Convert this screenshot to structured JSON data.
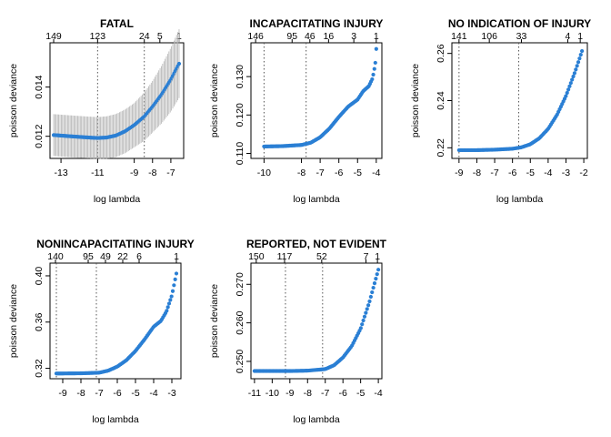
{
  "figure": {
    "background": "#ffffff",
    "point_color": "#2a7fd4",
    "band_color": "#b3b3b3"
  },
  "chart_data": [
    {
      "type": "scatter",
      "title": "FATAL",
      "xlabel": "log lambda",
      "ylabel": "poisson deviance",
      "xlim": [
        -13.6,
        -6.3
      ],
      "ylim": [
        0.0111,
        0.0158
      ],
      "xticks": [
        -13,
        -11,
        -9,
        -8,
        -7
      ],
      "yticks": [
        0.012,
        0.014
      ],
      "ytick_labels": [
        "0.012",
        "0.014"
      ],
      "top_ticks": [
        {
          "x": -13.4,
          "label": "149"
        },
        {
          "x": -11.0,
          "label": "123"
        },
        {
          "x": -8.45,
          "label": "24"
        },
        {
          "x": -7.6,
          "label": "5"
        },
        {
          "x": -6.55,
          "label": "1"
        }
      ],
      "vlines": [
        -11.0,
        -8.45
      ],
      "x_range": [
        -13.4,
        -6.55
      ],
      "curve": [
        [
          -13.4,
          0.01205
        ],
        [
          -12.5,
          0.012
        ],
        [
          -11.5,
          0.01195
        ],
        [
          -11.0,
          0.01193
        ],
        [
          -10.5,
          0.01195
        ],
        [
          -10.0,
          0.01203
        ],
        [
          -9.5,
          0.0122
        ],
        [
          -9.0,
          0.01245
        ],
        [
          -8.45,
          0.0128
        ],
        [
          -8.0,
          0.0132
        ],
        [
          -7.5,
          0.0137
        ],
        [
          -7.0,
          0.0143
        ],
        [
          -6.55,
          0.01495
        ]
      ],
      "band": [
        [
          -13.4,
          0.00085
        ],
        [
          -11.0,
          0.00085
        ],
        [
          -9.0,
          0.0009
        ],
        [
          -8.0,
          0.00105
        ],
        [
          -7.0,
          0.0013
        ],
        [
          -6.55,
          0.0014
        ]
      ],
      "extra_points": []
    },
    {
      "type": "scatter",
      "title": "INCAPACITATING INJURY",
      "xlabel": "log lambda",
      "ylabel": "poisson deviance",
      "xlim": [
        -10.7,
        -3.7
      ],
      "ylim": [
        0.1087,
        0.1388
      ],
      "xticks": [
        -10,
        -8,
        -7,
        -6,
        -5,
        -4
      ],
      "yticks": [
        0.11,
        0.12,
        0.13
      ],
      "ytick_labels": [
        "0.110",
        "0.120",
        "0.130"
      ],
      "top_ticks": [
        {
          "x": -10.45,
          "label": "146"
        },
        {
          "x": -8.5,
          "label": "95"
        },
        {
          "x": -7.55,
          "label": "46"
        },
        {
          "x": -6.55,
          "label": "16"
        },
        {
          "x": -5.2,
          "label": "3"
        },
        {
          "x": -4.0,
          "label": "1"
        }
      ],
      "vlines": [
        -10.0,
        -7.75
      ],
      "x_range": [
        -10.0,
        -4.1
      ],
      "curve": [
        [
          -10.0,
          0.1118
        ],
        [
          -9.0,
          0.1119
        ],
        [
          -8.0,
          0.1122
        ],
        [
          -7.5,
          0.1128
        ],
        [
          -7.0,
          0.1142
        ],
        [
          -6.5,
          0.1165
        ],
        [
          -6.0,
          0.1195
        ],
        [
          -5.5,
          0.1222
        ],
        [
          -5.0,
          0.124
        ],
        [
          -4.7,
          0.1262
        ],
        [
          -4.4,
          0.1275
        ],
        [
          -4.2,
          0.1295
        ],
        [
          -4.1,
          0.132
        ]
      ],
      "band": [],
      "extra_points": [
        [
          -4.05,
          0.1336
        ],
        [
          -4.0,
          0.1372
        ]
      ]
    },
    {
      "type": "scatter",
      "title": "NO INDICATION OF INJURY",
      "xlabel": "log lambda",
      "ylabel": "poisson deviance",
      "xlim": [
        -9.4,
        -1.8
      ],
      "ylim": [
        0.2155,
        0.2645
      ],
      "xticks": [
        -9,
        -8,
        -7,
        -6,
        -5,
        -4,
        -3,
        -2
      ],
      "yticks": [
        0.22,
        0.24,
        0.26
      ],
      "ytick_labels": [
        "0.22",
        "0.24",
        "0.26"
      ],
      "top_ticks": [
        {
          "x": -9.0,
          "label": "141"
        },
        {
          "x": -7.3,
          "label": "106"
        },
        {
          "x": -5.5,
          "label": "33"
        },
        {
          "x": -2.9,
          "label": "4"
        },
        {
          "x": -2.2,
          "label": "1"
        }
      ],
      "vlines": [
        -9.0,
        -5.65
      ],
      "x_range": [
        -9.0,
        -2.1
      ],
      "curve": [
        [
          -9.0,
          0.219
        ],
        [
          -8.0,
          0.219
        ],
        [
          -7.0,
          0.2192
        ],
        [
          -6.0,
          0.2196
        ],
        [
          -5.5,
          0.2202
        ],
        [
          -5.0,
          0.2215
        ],
        [
          -4.5,
          0.224
        ],
        [
          -4.0,
          0.228
        ],
        [
          -3.5,
          0.234
        ],
        [
          -3.0,
          0.242
        ],
        [
          -2.5,
          0.252
        ],
        [
          -2.1,
          0.261
        ]
      ],
      "band": [],
      "extra_points": []
    },
    {
      "type": "scatter",
      "title": "NONINCAPACITATING INJURY",
      "xlabel": "log lambda",
      "ylabel": "poisson deviance",
      "xlim": [
        -9.7,
        -2.5
      ],
      "ylim": [
        0.311,
        0.411
      ],
      "xticks": [
        -9,
        -8,
        -7,
        -6,
        -5,
        -4,
        -3
      ],
      "yticks": [
        0.32,
        0.36,
        0.4
      ],
      "ytick_labels": [
        "0.32",
        "0.36",
        "0.40"
      ],
      "top_ticks": [
        {
          "x": -9.4,
          "label": "140"
        },
        {
          "x": -7.6,
          "label": "95"
        },
        {
          "x": -6.65,
          "label": "49"
        },
        {
          "x": -5.7,
          "label": "22"
        },
        {
          "x": -4.8,
          "label": "6"
        },
        {
          "x": -2.75,
          "label": "1"
        }
      ],
      "vlines": [
        -9.35,
        -7.15
      ],
      "x_range": [
        -9.35,
        -2.75
      ],
      "curve": [
        [
          -9.35,
          0.3155
        ],
        [
          -8.0,
          0.3157
        ],
        [
          -7.0,
          0.3162
        ],
        [
          -6.5,
          0.318
        ],
        [
          -6.0,
          0.3215
        ],
        [
          -5.5,
          0.327
        ],
        [
          -5.0,
          0.335
        ],
        [
          -4.5,
          0.345
        ],
        [
          -4.0,
          0.356
        ],
        [
          -3.6,
          0.361
        ],
        [
          -3.3,
          0.369
        ],
        [
          -3.0,
          0.383
        ],
        [
          -2.75,
          0.402
        ]
      ],
      "band": [],
      "extra_points": []
    },
    {
      "type": "scatter",
      "title": "REPORTED, NOT EVIDENT",
      "xlabel": "log lambda",
      "ylabel": "poisson deviance",
      "xlim": [
        -11.2,
        -3.8
      ],
      "ylim": [
        0.2455,
        0.2755
      ],
      "xticks": [
        -11,
        -10,
        -9,
        -8,
        -7,
        -6,
        -5,
        -4
      ],
      "yticks": [
        0.25,
        0.26,
        0.27
      ],
      "ytick_labels": [
        "0.250",
        "0.260",
        "0.270"
      ],
      "top_ticks": [
        {
          "x": -10.9,
          "label": "150"
        },
        {
          "x": -9.3,
          "label": "117"
        },
        {
          "x": -7.2,
          "label": "52"
        },
        {
          "x": -4.7,
          "label": "7"
        },
        {
          "x": -4.05,
          "label": "1"
        }
      ],
      "vlines": [
        -9.25,
        -7.15
      ],
      "x_range": [
        -11.0,
        -4.0
      ],
      "curve": [
        [
          -11.0,
          0.2475
        ],
        [
          -9.0,
          0.2475
        ],
        [
          -8.0,
          0.2476
        ],
        [
          -7.0,
          0.248
        ],
        [
          -6.5,
          0.249
        ],
        [
          -6.0,
          0.251
        ],
        [
          -5.5,
          0.254
        ],
        [
          -5.0,
          0.2585
        ],
        [
          -4.5,
          0.2655
        ],
        [
          -4.0,
          0.2738
        ]
      ],
      "band": [],
      "extra_points": []
    }
  ]
}
